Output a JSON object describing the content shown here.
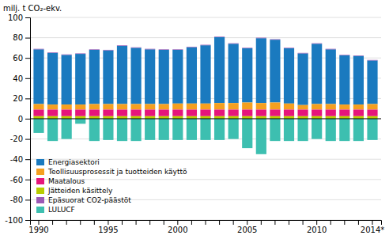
{
  "chart_data": {
    "type": "bar",
    "stacked": true,
    "y_label": "milj. t CO₂-ekv.",
    "categories": [
      "1990",
      null,
      null,
      null,
      null,
      "1995",
      null,
      null,
      null,
      null,
      "2000",
      null,
      null,
      null,
      null,
      "2005",
      null,
      null,
      null,
      null,
      "2010",
      null,
      null,
      null,
      "2014*"
    ],
    "series": [
      {
        "name": "Energiasektori",
        "color": "#1a7abf",
        "values": [
          54.0,
          51.0,
          49.0,
          50.0,
          53.5,
          53.0,
          57.5,
          55.5,
          54.0,
          53.5,
          53.0,
          55.5,
          57.5,
          65.0,
          58.5,
          53.5,
          64.0,
          62.0,
          54.5,
          51.0,
          59.5,
          54.0,
          48.5,
          48.0,
          43.0
        ]
      },
      {
        "name": "Teollisuusprosessit ja tuotteiden käyttö",
        "color": "#f5a020",
        "values": [
          5.5,
          5.0,
          5.0,
          5.0,
          5.5,
          5.5,
          5.5,
          5.5,
          5.5,
          5.5,
          6.0,
          6.0,
          6.0,
          6.5,
          6.5,
          7.0,
          6.5,
          7.0,
          6.0,
          4.5,
          5.5,
          5.5,
          5.0,
          5.0,
          5.5
        ]
      },
      {
        "name": "Maatalous",
        "color": "#e6157b",
        "values": [
          6.5,
          6.5,
          6.5,
          6.5,
          6.5,
          6.5,
          6.5,
          6.5,
          6.5,
          6.5,
          6.5,
          6.5,
          6.5,
          6.5,
          6.5,
          6.5,
          6.5,
          6.5,
          6.5,
          6.5,
          6.5,
          6.5,
          6.5,
          6.5,
          6.5
        ]
      },
      {
        "name": "Jätteiden käsittely",
        "color": "#b8cc00",
        "values": [
          2.5,
          2.5,
          2.5,
          2.5,
          2.5,
          2.5,
          2.5,
          2.5,
          2.5,
          2.5,
          2.5,
          2.5,
          2.5,
          2.5,
          2.5,
          2.5,
          2.5,
          2.5,
          2.5,
          2.5,
          2.5,
          2.5,
          2.5,
          2.5,
          2.5
        ]
      },
      {
        "name": "Epäsuorat CO2-päästöt",
        "color": "#9b59b6",
        "values": [
          0.5,
          0.5,
          0.5,
          0.5,
          0.5,
          0.5,
          0.5,
          0.5,
          0.5,
          0.5,
          0.5,
          0.5,
          0.5,
          0.5,
          0.5,
          0.5,
          0.5,
          0.5,
          0.5,
          0.5,
          0.5,
          0.5,
          0.5,
          0.5,
          0.5
        ]
      },
      {
        "name": "LULUCF",
        "color": "#3dbfb0",
        "values": [
          -14.0,
          -22.0,
          -20.0,
          -5.0,
          -22.0,
          -21.0,
          -22.0,
          -22.0,
          -21.0,
          -21.0,
          -21.0,
          -21.0,
          -21.0,
          -21.0,
          -20.0,
          -29.0,
          -35.0,
          -22.0,
          -22.0,
          -22.0,
          -20.0,
          -22.0,
          -22.0,
          -22.0,
          -21.0
        ]
      }
    ],
    "ylim": [
      -100,
      100
    ],
    "yticks": [
      -100,
      -80,
      -60,
      -40,
      -20,
      0,
      20,
      40,
      60,
      80,
      100
    ],
    "grid": true,
    "legend": "lower left"
  }
}
